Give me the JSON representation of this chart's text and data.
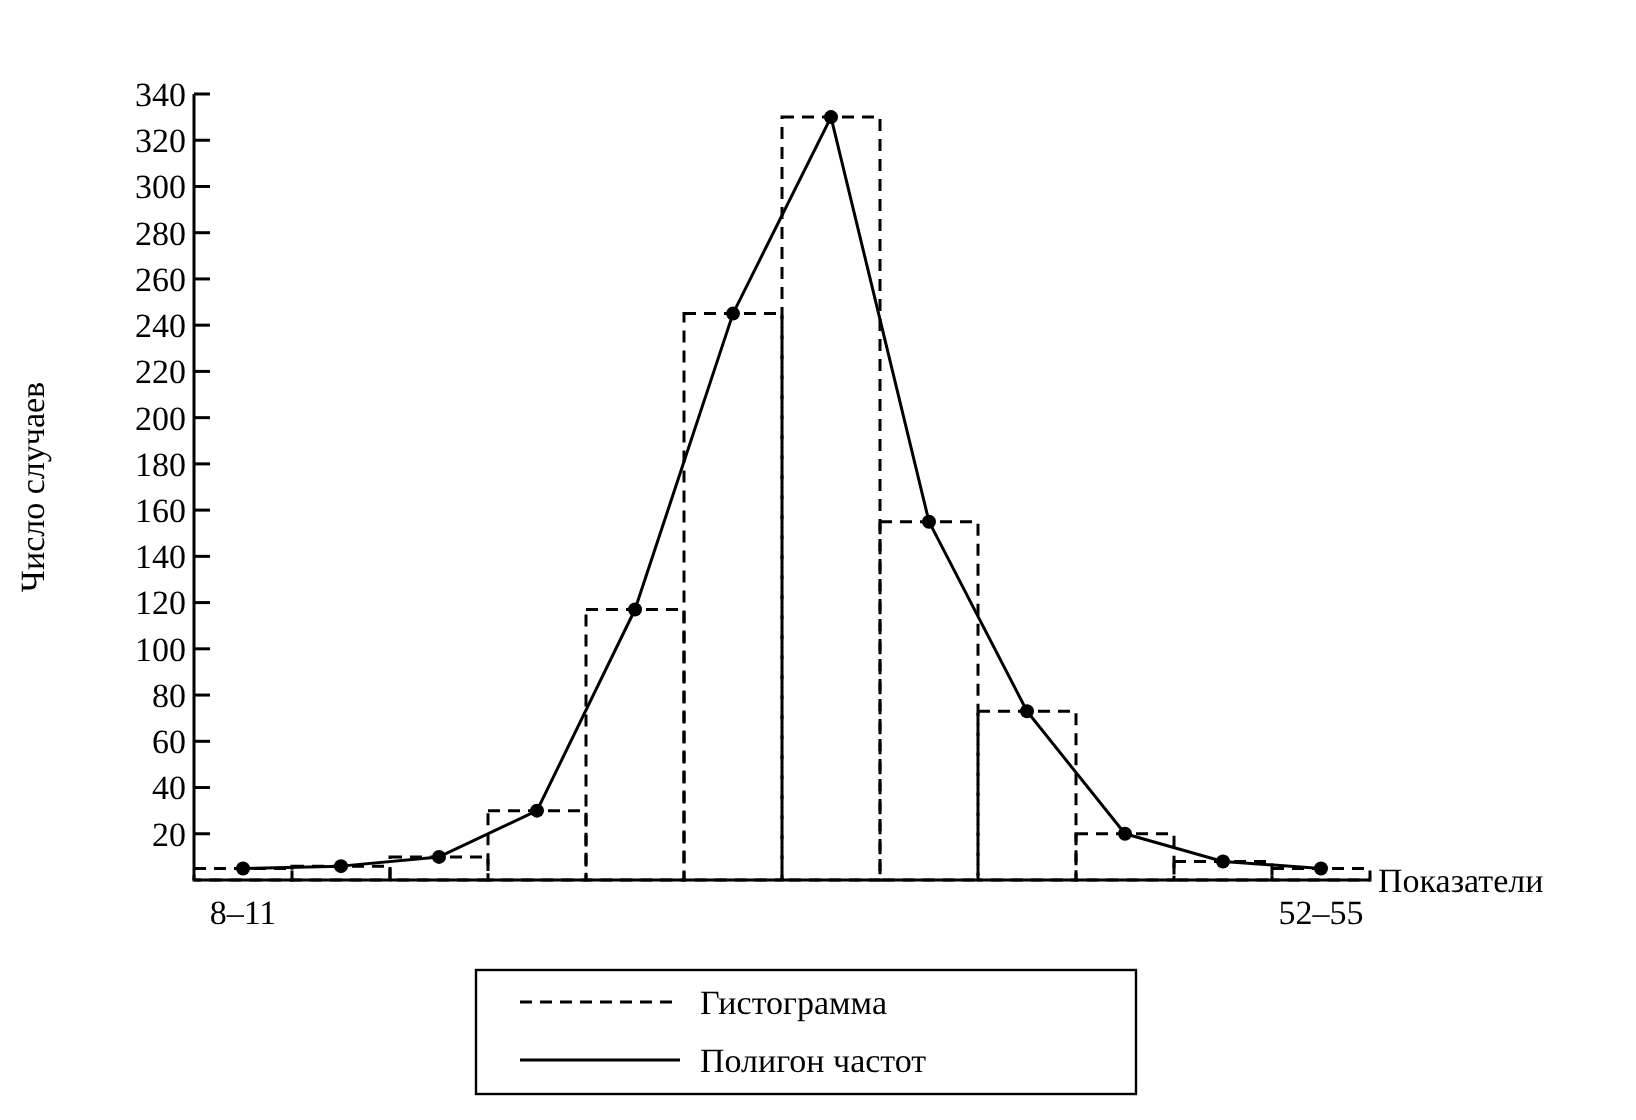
{
  "chart_data": {
    "type": "bar",
    "xlabel": "Показатели",
    "ylabel": "Число случаев",
    "categories": [
      "8–11",
      null,
      null,
      null,
      null,
      null,
      null,
      null,
      null,
      null,
      null,
      "52–55"
    ],
    "series": [
      {
        "name": "Гистограмма",
        "color": "#000000",
        "line_style": "dashed",
        "values": [
          5,
          6,
          10,
          30,
          117,
          245,
          330,
          155,
          73,
          20,
          8,
          5
        ]
      },
      {
        "name": "Полигон частот",
        "type": "line",
        "color": "#000000",
        "line_style": "solid",
        "marker": "circle",
        "values": [
          5,
          6,
          10,
          30,
          117,
          245,
          330,
          155,
          73,
          20,
          8,
          5
        ]
      }
    ],
    "ylim": [
      0,
      340
    ],
    "yticks": [
      20,
      40,
      60,
      80,
      100,
      120,
      140,
      160,
      180,
      200,
      220,
      240,
      260,
      280,
      300,
      320,
      340
    ],
    "grid": false,
    "legend": "bottom"
  }
}
